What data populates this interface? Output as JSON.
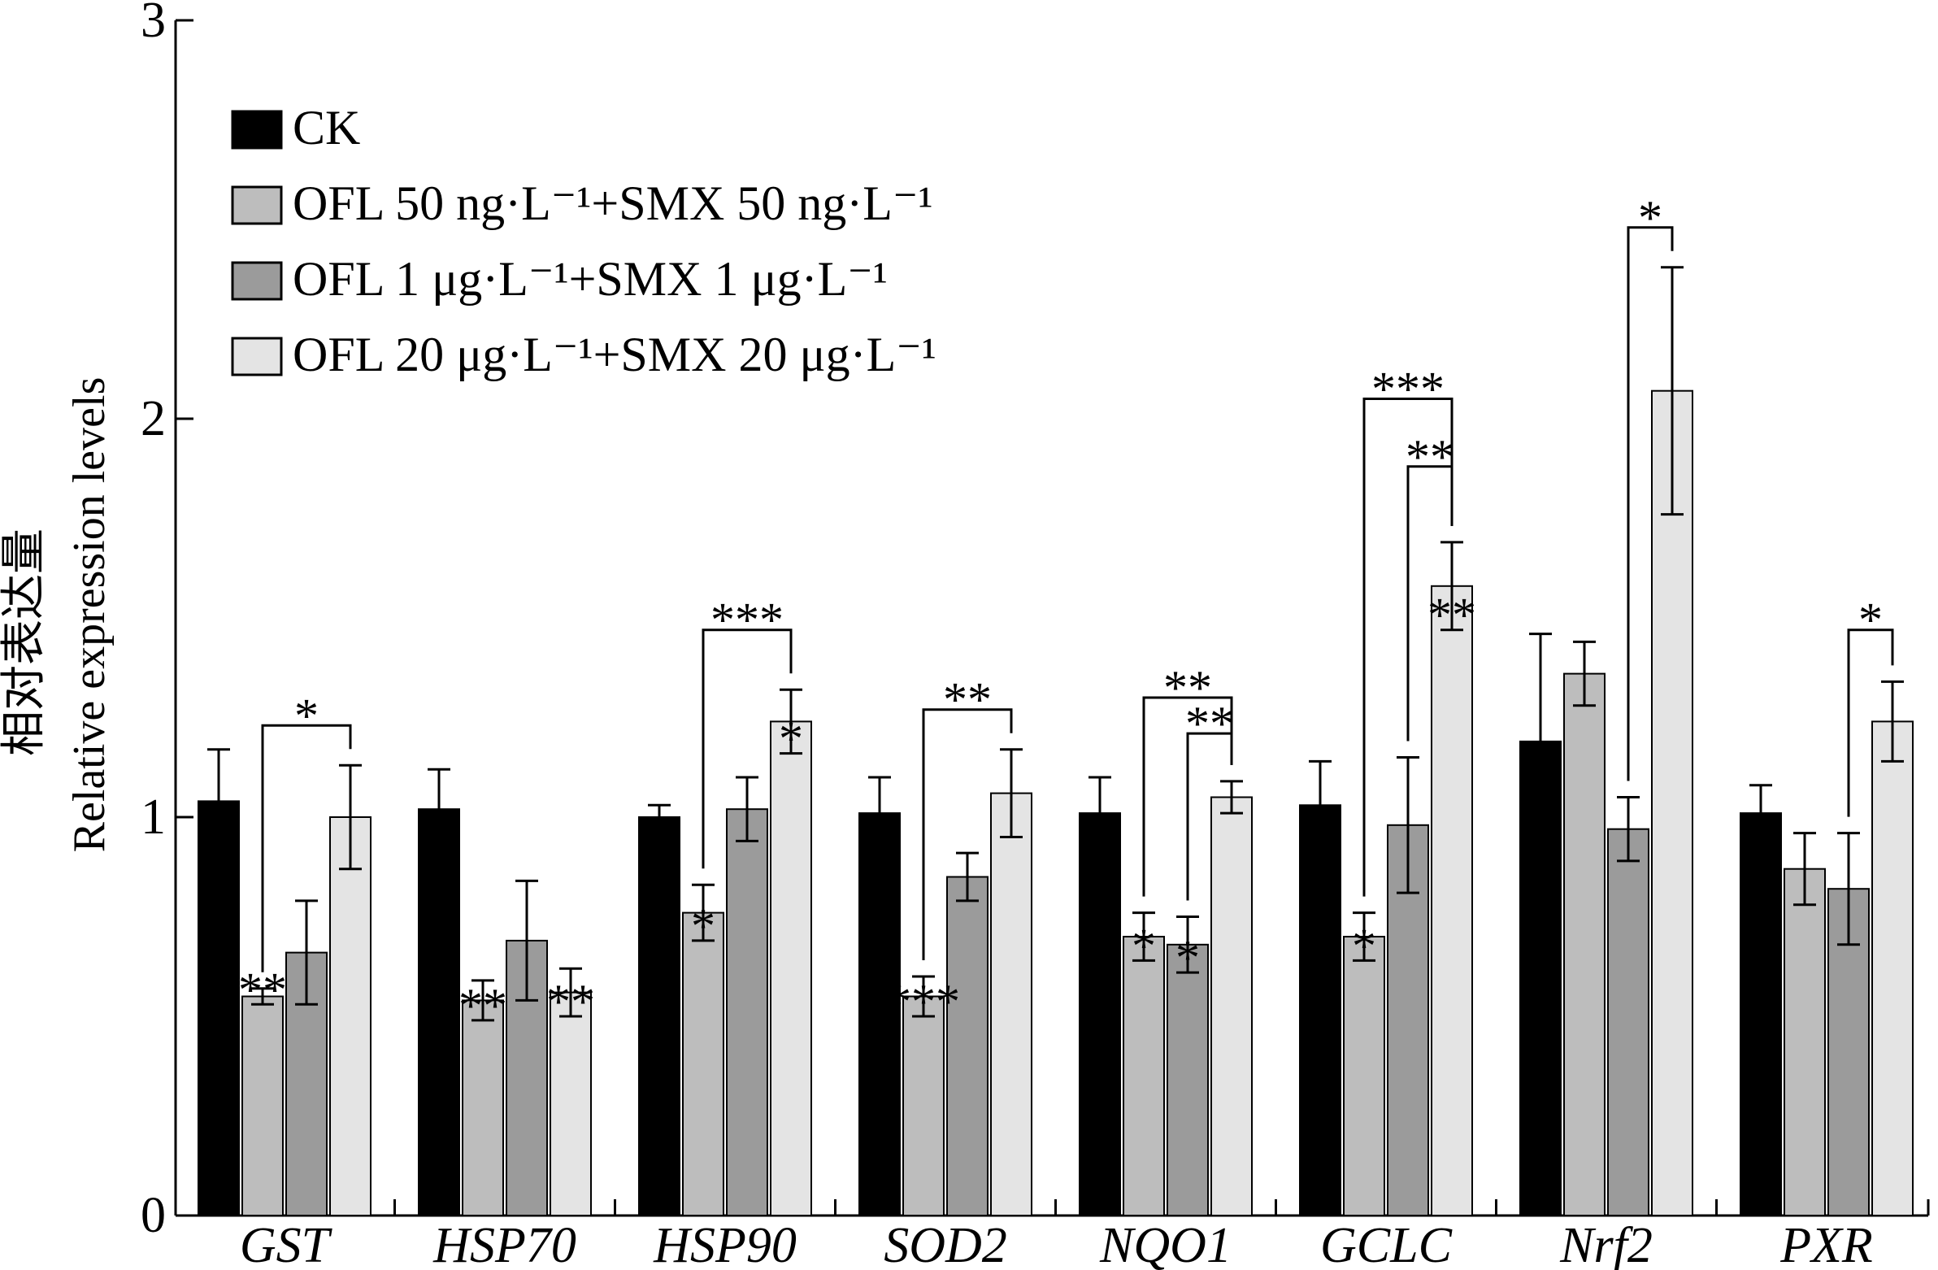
{
  "chart_data": {
    "type": "bar",
    "ylabel_cn": "相对表达量",
    "ylabel": "Relative expression levels",
    "ylim": [
      0,
      3
    ],
    "yticks": [
      "0",
      "1",
      "2",
      "3"
    ],
    "categories": [
      "GST",
      "HSP70",
      "HSP90",
      "SOD2",
      "NQO1",
      "GCLC",
      "Nrf2",
      "PXR"
    ],
    "legend_position": "top-left",
    "series": [
      {
        "name": "CK",
        "color": "#000000",
        "values": [
          1.04,
          1.02,
          1.0,
          1.01,
          1.01,
          1.03,
          1.19,
          1.01
        ],
        "errors": [
          0.13,
          0.1,
          0.03,
          0.09,
          0.09,
          0.11,
          0.27,
          0.07
        ]
      },
      {
        "name": "OFL 50 ng·L⁻¹+SMX 50 ng·L⁻¹",
        "color": "#bdbdbd",
        "values": [
          0.55,
          0.54,
          0.76,
          0.55,
          0.7,
          0.7,
          1.36,
          0.87
        ],
        "errors": [
          0.02,
          0.05,
          0.07,
          0.05,
          0.06,
          0.06,
          0.08,
          0.09
        ]
      },
      {
        "name": "OFL 1 μg·L⁻¹+SMX 1 μg·L⁻¹",
        "color": "#9b9b9b",
        "values": [
          0.66,
          0.69,
          1.02,
          0.85,
          0.68,
          0.98,
          0.97,
          0.82
        ],
        "errors": [
          0.13,
          0.15,
          0.08,
          0.06,
          0.07,
          0.17,
          0.08,
          0.14
        ]
      },
      {
        "name": "OFL 20 μg·L⁻¹+SMX 20 μg·L⁻¹",
        "color": "#e4e4e4",
        "values": [
          1.0,
          0.56,
          1.24,
          1.06,
          1.05,
          1.58,
          2.07,
          1.24
        ],
        "errors": [
          0.13,
          0.06,
          0.08,
          0.11,
          0.04,
          0.11,
          0.31,
          0.1
        ]
      }
    ],
    "significance": [
      {
        "category": 0,
        "series": 1,
        "label": "**"
      },
      {
        "category": 1,
        "series": 1,
        "label": "**"
      },
      {
        "category": 1,
        "series": 3,
        "label": "**"
      },
      {
        "category": 2,
        "series": 1,
        "label": "*"
      },
      {
        "category": 2,
        "series": 3,
        "label": "*"
      },
      {
        "category": 3,
        "series": 1,
        "label": "***"
      },
      {
        "category": 4,
        "series": 1,
        "label": "*"
      },
      {
        "category": 4,
        "series": 2,
        "label": "*"
      },
      {
        "category": 5,
        "series": 1,
        "label": "*"
      },
      {
        "category": 5,
        "series": 3,
        "label": "**"
      }
    ],
    "brackets": [
      {
        "category": 0,
        "from": 1,
        "to": 3,
        "top": 1.23,
        "label": "*"
      },
      {
        "category": 2,
        "from": 1,
        "to": 3,
        "top": 1.47,
        "label": "***"
      },
      {
        "category": 3,
        "from": 1,
        "to": 3,
        "top": 1.27,
        "label": "**"
      },
      {
        "category": 4,
        "from": 1,
        "to": 3,
        "top": 1.3,
        "label": "**"
      },
      {
        "category": 4,
        "from": 2,
        "to": 3,
        "top": 1.21,
        "label": "**"
      },
      {
        "category": 5,
        "from": 1,
        "to": 3,
        "top": 2.05,
        "label": "***"
      },
      {
        "category": 5,
        "from": 2,
        "to": 3,
        "top": 1.88,
        "label": "**"
      },
      {
        "category": 6,
        "from": 2,
        "to": 3,
        "top": 2.48,
        "label": "*"
      },
      {
        "category": 7,
        "from": 2,
        "to": 3,
        "top": 1.47,
        "label": "*"
      }
    ]
  }
}
